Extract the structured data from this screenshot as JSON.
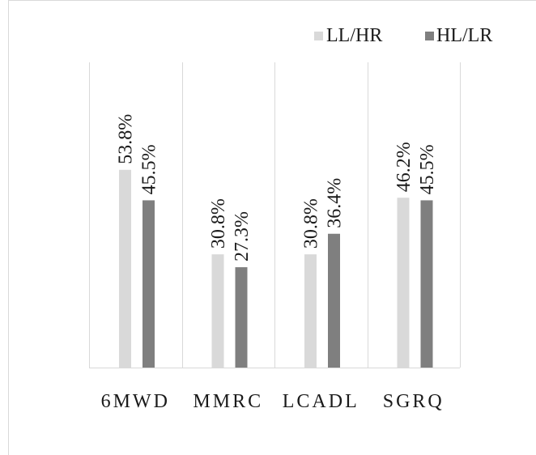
{
  "chart_data": {
    "type": "bar",
    "categories": [
      "6MWD",
      "MMRC",
      "LCADL",
      "SGRQ"
    ],
    "series": [
      {
        "name": "LL/HR",
        "values": [
          53.8,
          30.8,
          30.8,
          46.2
        ],
        "labels": [
          "53.8%",
          "30.8%",
          "30.8%",
          "46.2%"
        ],
        "color": "#d9d9d9"
      },
      {
        "name": "HL/LR",
        "values": [
          45.5,
          27.3,
          36.4,
          45.5
        ],
        "labels": [
          "45.5%",
          "27.3%",
          "36.4%",
          "45.5%"
        ],
        "color": "#7f7f7f"
      }
    ],
    "ylim": [
      0,
      100
    ],
    "grid": "vertical category separators",
    "legend_position": "top-right"
  }
}
